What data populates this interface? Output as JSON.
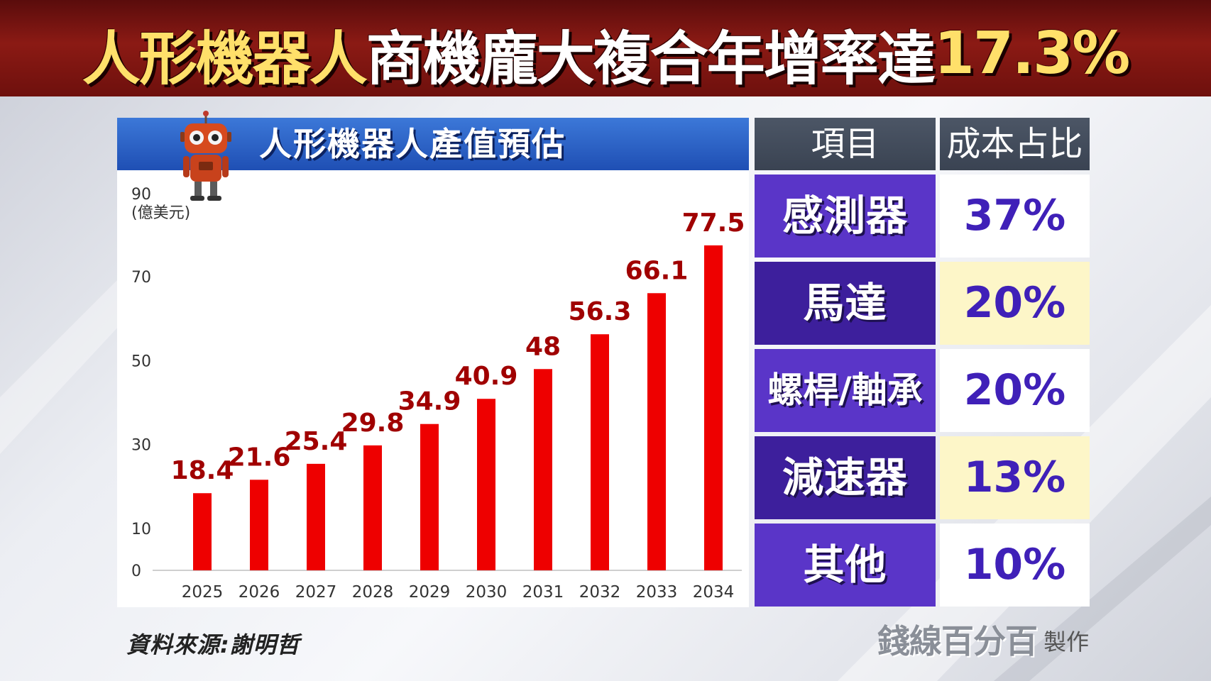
{
  "headline": {
    "part1": "人形機器人",
    "part2": "商機龐大",
    "part3": "複合年增率達",
    "part4": "17.3%"
  },
  "chart_data": {
    "type": "bar",
    "title": "人形機器人產值預估",
    "unit_label": "(億美元)",
    "categories": [
      "2025",
      "2026",
      "2027",
      "2028",
      "2029",
      "2030",
      "2031",
      "2032",
      "2033",
      "2034"
    ],
    "values": [
      18.4,
      21.6,
      25.4,
      29.8,
      34.9,
      40.9,
      48,
      56.3,
      66.1,
      77.5
    ],
    "value_labels": [
      "18.4",
      "21.6",
      "25.4",
      "29.8",
      "34.9",
      "40.9",
      "48",
      "56.3",
      "66.1",
      "77.5"
    ],
    "yticks": [
      0,
      10,
      30,
      50,
      70,
      90
    ],
    "ylim": [
      0,
      90
    ],
    "xlabel": "",
    "ylabel": "(億美元)",
    "grid": false,
    "bar_color": "#ee0000",
    "label_color": "#a00000"
  },
  "table": {
    "header_item": "項目",
    "header_share": "成本占比",
    "rows": [
      {
        "item": "感測器",
        "share": "37%"
      },
      {
        "item": "馬達",
        "share": "20%"
      },
      {
        "item": "螺桿/軸承",
        "share": "20%"
      },
      {
        "item": "減速器",
        "share": "13%"
      },
      {
        "item": "其他",
        "share": "10%"
      }
    ],
    "item_colors": [
      "#5a35c8",
      "#3d1f9c",
      "#5a35c8",
      "#3d1f9c",
      "#5a35c8"
    ],
    "share_colors": [
      "#ffffff",
      "#fdf6c8",
      "#ffffff",
      "#fdf6c8",
      "#ffffff"
    ]
  },
  "footer": {
    "source": "資料來源:謝明哲",
    "credit_logo": "錢線百分百",
    "credit_suffix": "製作"
  }
}
